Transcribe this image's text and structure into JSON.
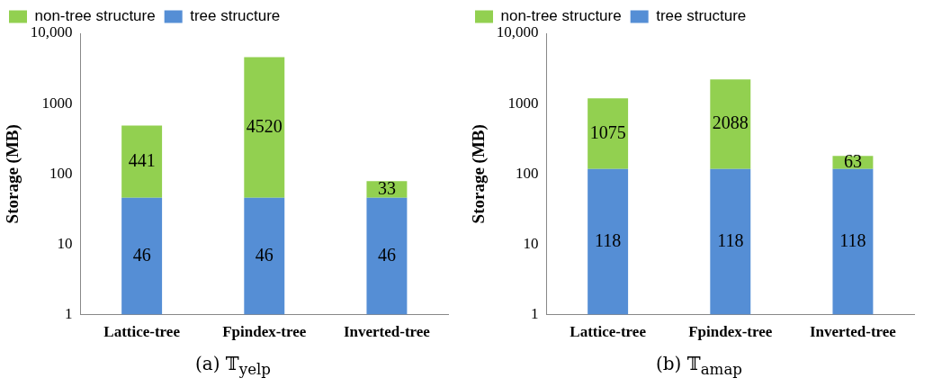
{
  "chart_data": [
    {
      "type": "bar",
      "title": "(a) 𝕋$_{yelp}$",
      "ylabel": "Storage (MB)",
      "categories": [
        "Lattice-tree",
        "Fpindex-tree",
        "Inverted-tree"
      ],
      "stacked": true,
      "log": true,
      "ylim": [
        1,
        10000
      ],
      "yticks": [
        1,
        10,
        100,
        1000,
        {
          "value": 10000,
          "label": "10,000"
        }
      ],
      "legend": "top left",
      "data_labels": true,
      "series": [
        {
          "name": "tree structure",
          "color": "#558ed5",
          "values": [
            46,
            46,
            46
          ]
        },
        {
          "name": "non-tree structure",
          "color": "#92d050",
          "values": [
            441,
            4520,
            33
          ]
        }
      ]
    },
    {
      "type": "bar",
      "title": "(b) 𝕋$_{amap}$",
      "ylabel": "Storage (MB)",
      "categories": [
        "Lattice-tree",
        "Fpindex-tree",
        "Inverted-tree"
      ],
      "stacked": true,
      "log": true,
      "ylim": [
        1,
        10000
      ],
      "yticks": [
        1,
        10,
        100,
        1000,
        {
          "value": 10000,
          "label": "10,000"
        }
      ],
      "legend": "top left",
      "data_labels": true,
      "series": [
        {
          "name": "tree structure",
          "color": "#558ed5",
          "values": [
            118,
            118,
            118
          ]
        },
        {
          "name": "non-tree structure",
          "color": "#92d050",
          "values": [
            1075,
            2088,
            63
          ]
        }
      ]
    }
  ]
}
